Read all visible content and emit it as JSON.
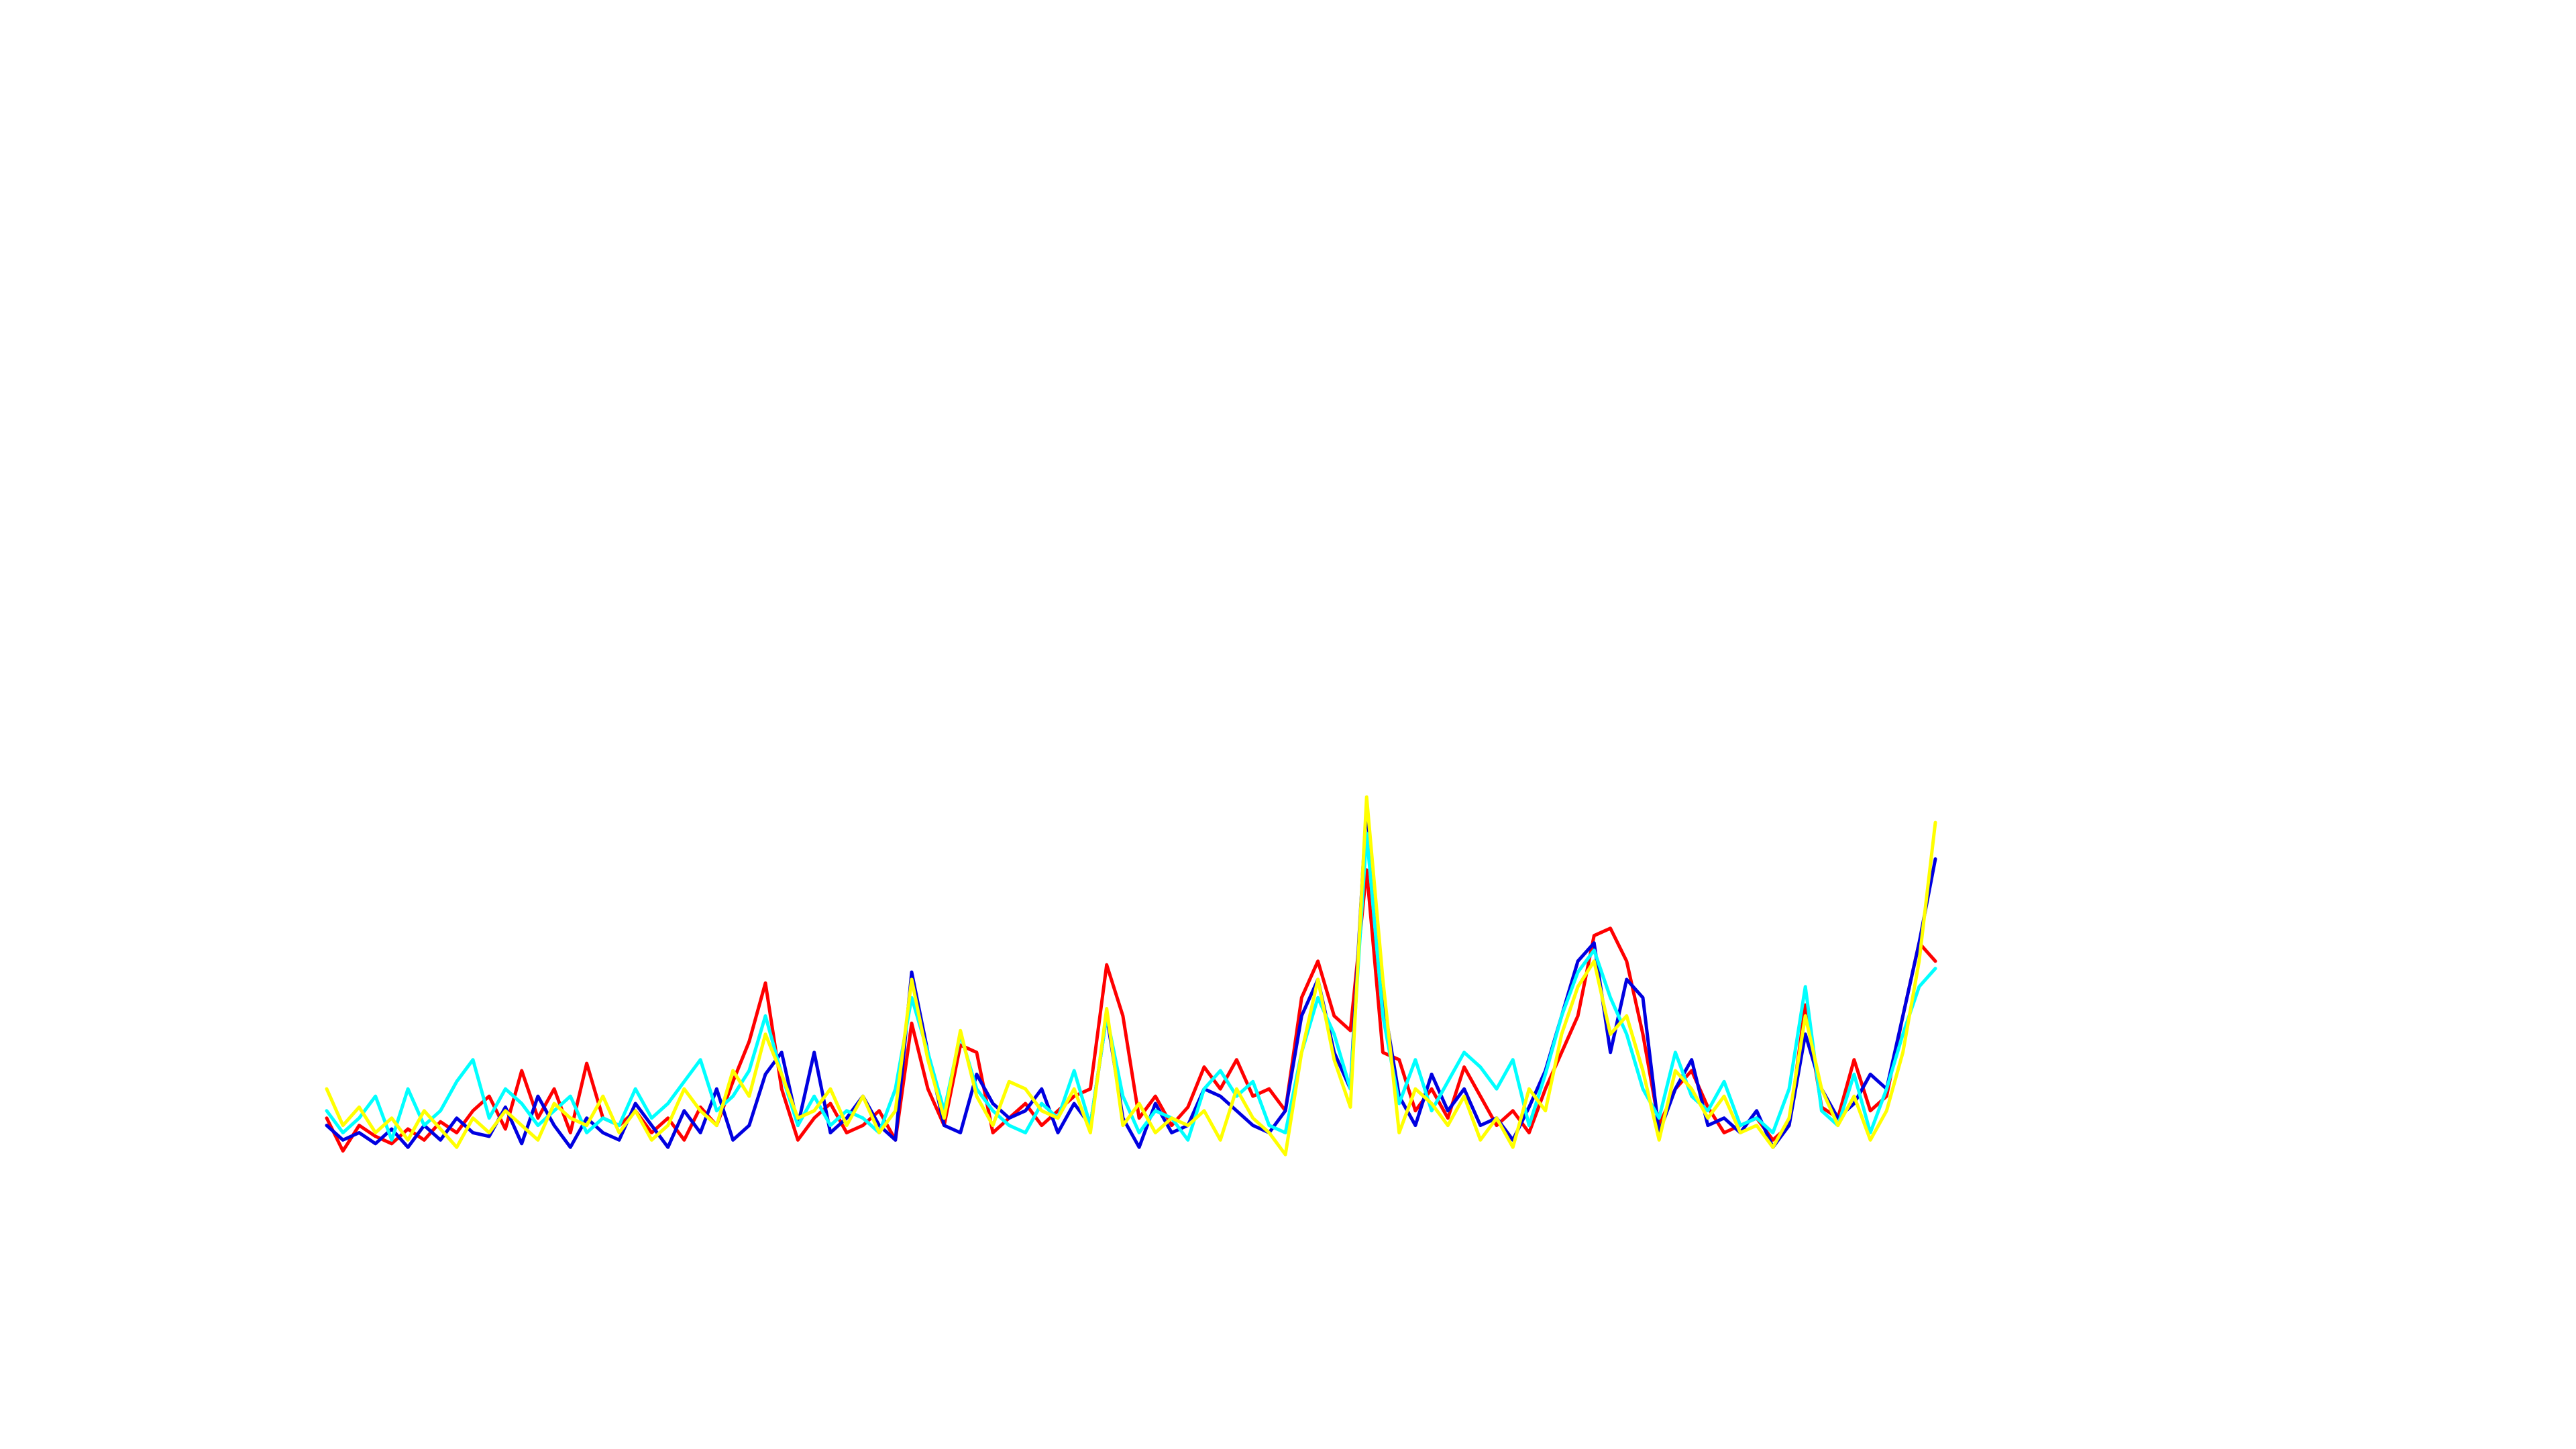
{
  "chart_data": {
    "type": "line",
    "ylim": [
      0,
      100
    ],
    "series": [
      {
        "name": "red",
        "color": "#ff0000",
        "values": [
          12,
          3,
          10,
          7,
          5,
          9,
          6,
          11,
          8,
          14,
          18,
          9,
          25,
          12,
          20,
          8,
          27,
          12,
          10,
          14,
          8,
          12,
          6,
          15,
          10,
          22,
          33,
          49,
          20,
          6,
          12,
          16,
          8,
          10,
          14,
          6,
          38,
          20,
          10,
          32,
          30,
          8,
          12,
          16,
          10,
          14,
          18,
          20,
          54,
          40,
          12,
          18,
          10,
          15,
          26,
          20,
          28,
          18,
          20,
          14,
          45,
          55,
          40,
          36,
          80,
          30,
          28,
          14,
          20,
          12,
          26,
          18,
          10,
          14,
          8,
          20,
          30,
          40,
          62,
          64,
          55,
          35,
          10,
          20,
          25,
          15,
          8,
          10,
          12,
          6,
          10,
          43,
          15,
          12,
          28,
          14,
          18,
          40,
          60,
          55
        ]
      },
      {
        "name": "blue",
        "color": "#0000e0",
        "values": [
          10,
          6,
          8,
          5,
          9,
          4,
          10,
          6,
          12,
          8,
          7,
          15,
          5,
          18,
          10,
          4,
          12,
          8,
          6,
          16,
          10,
          4,
          14,
          8,
          20,
          6,
          10,
          24,
          30,
          10,
          30,
          8,
          12,
          18,
          10,
          6,
          52,
          30,
          10,
          8,
          24,
          16,
          12,
          14,
          20,
          8,
          16,
          10,
          40,
          12,
          4,
          16,
          8,
          10,
          20,
          18,
          14,
          10,
          8,
          14,
          40,
          50,
          30,
          20,
          98,
          45,
          18,
          10,
          24,
          14,
          20,
          10,
          12,
          6,
          15,
          25,
          40,
          55,
          60,
          30,
          50,
          45,
          8,
          20,
          28,
          10,
          12,
          8,
          14,
          4,
          10,
          35,
          20,
          12,
          16,
          24,
          20,
          40,
          60,
          83
        ]
      },
      {
        "name": "cyan",
        "color": "#00ffff",
        "values": [
          14,
          8,
          12,
          18,
          6,
          20,
          10,
          14,
          22,
          28,
          12,
          20,
          16,
          10,
          14,
          18,
          8,
          12,
          10,
          20,
          12,
          16,
          22,
          28,
          14,
          18,
          25,
          40,
          24,
          10,
          18,
          10,
          14,
          12,
          8,
          20,
          45,
          30,
          14,
          35,
          20,
          14,
          10,
          8,
          16,
          12,
          25,
          10,
          40,
          18,
          8,
          14,
          12,
          6,
          20,
          25,
          18,
          22,
          10,
          8,
          30,
          45,
          35,
          20,
          90,
          40,
          16,
          28,
          14,
          22,
          30,
          26,
          20,
          28,
          10,
          24,
          40,
          52,
          58,
          45,
          35,
          20,
          12,
          30,
          18,
          14,
          22,
          10,
          12,
          8,
          20,
          48,
          14,
          10,
          24,
          8,
          20,
          35,
          48,
          53
        ]
      },
      {
        "name": "yellow",
        "color": "#ffff00",
        "values": [
          20,
          10,
          15,
          8,
          12,
          6,
          14,
          9,
          4,
          12,
          8,
          14,
          10,
          6,
          16,
          12,
          10,
          18,
          8,
          14,
          6,
          10,
          20,
          14,
          10,
          25,
          18,
          35,
          24,
          12,
          14,
          20,
          10,
          18,
          8,
          14,
          50,
          28,
          12,
          36,
          18,
          10,
          22,
          20,
          14,
          12,
          20,
          8,
          42,
          10,
          16,
          8,
          12,
          10,
          14,
          6,
          20,
          12,
          8,
          2,
          30,
          50,
          28,
          15,
          100,
          50,
          8,
          20,
          16,
          10,
          18,
          6,
          12,
          4,
          20,
          14,
          35,
          48,
          55,
          35,
          40,
          25,
          6,
          25,
          20,
          12,
          18,
          8,
          10,
          4,
          12,
          40,
          20,
          10,
          18,
          6,
          14,
          30,
          55,
          93
        ]
      }
    ]
  }
}
